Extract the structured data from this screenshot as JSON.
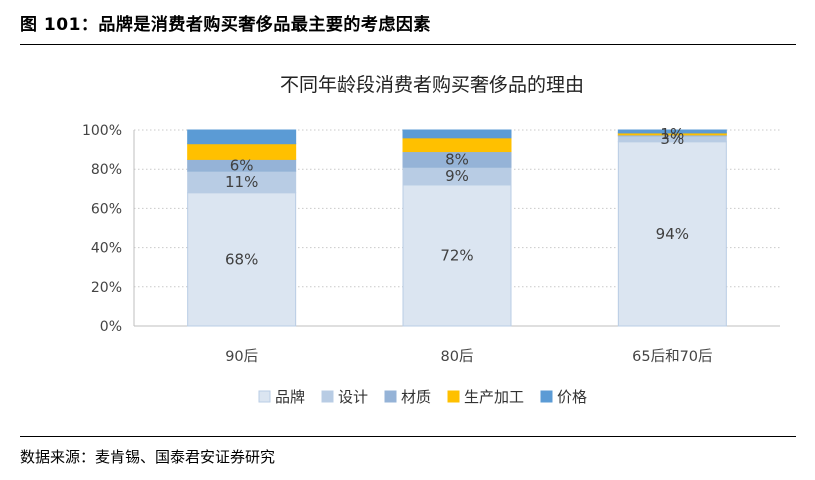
{
  "figure_title": "图 101：品牌是消费者购买奢侈品最主要的考虑因素",
  "source": "数据来源：麦肯锡、国泰君安证券研究",
  "chart_data": {
    "type": "bar",
    "stacked": true,
    "title": "不同年龄段消费者购买奢侈品的理由",
    "categories": [
      "90后",
      "80后",
      "65后和70后"
    ],
    "series": [
      {
        "name": "品牌",
        "values": [
          68,
          72,
          94
        ],
        "labels": [
          "68%",
          "72%",
          "94%"
        ],
        "color": "#dbe5f1",
        "edge": "#b9cde5"
      },
      {
        "name": "设计",
        "values": [
          11,
          9,
          3
        ],
        "labels": [
          "11%",
          "9%",
          "3%"
        ],
        "color": "#b8cce4",
        "edge": "#b8cce4"
      },
      {
        "name": "材质",
        "values": [
          6,
          8,
          0.5
        ],
        "labels": [
          "6%",
          "8%",
          ""
        ],
        "color": "#95b3d7",
        "edge": "#95b3d7"
      },
      {
        "name": "生产加工",
        "values": [
          8,
          7,
          1
        ],
        "labels": [
          "",
          "",
          "1%"
        ],
        "color": "#ffc000",
        "edge": "#ffc000"
      },
      {
        "name": "价格",
        "values": [
          7,
          4,
          1.5
        ],
        "labels": [
          "",
          "",
          ""
        ],
        "color": "#5b9bd5",
        "edge": "#5b9bd5"
      }
    ],
    "yticks": [
      "0%",
      "20%",
      "40%",
      "60%",
      "80%",
      "100%"
    ],
    "ylim": [
      0,
      100
    ],
    "xlabel": "",
    "ylabel": "",
    "grid": "horizontal dotted",
    "legend": "bottom"
  }
}
